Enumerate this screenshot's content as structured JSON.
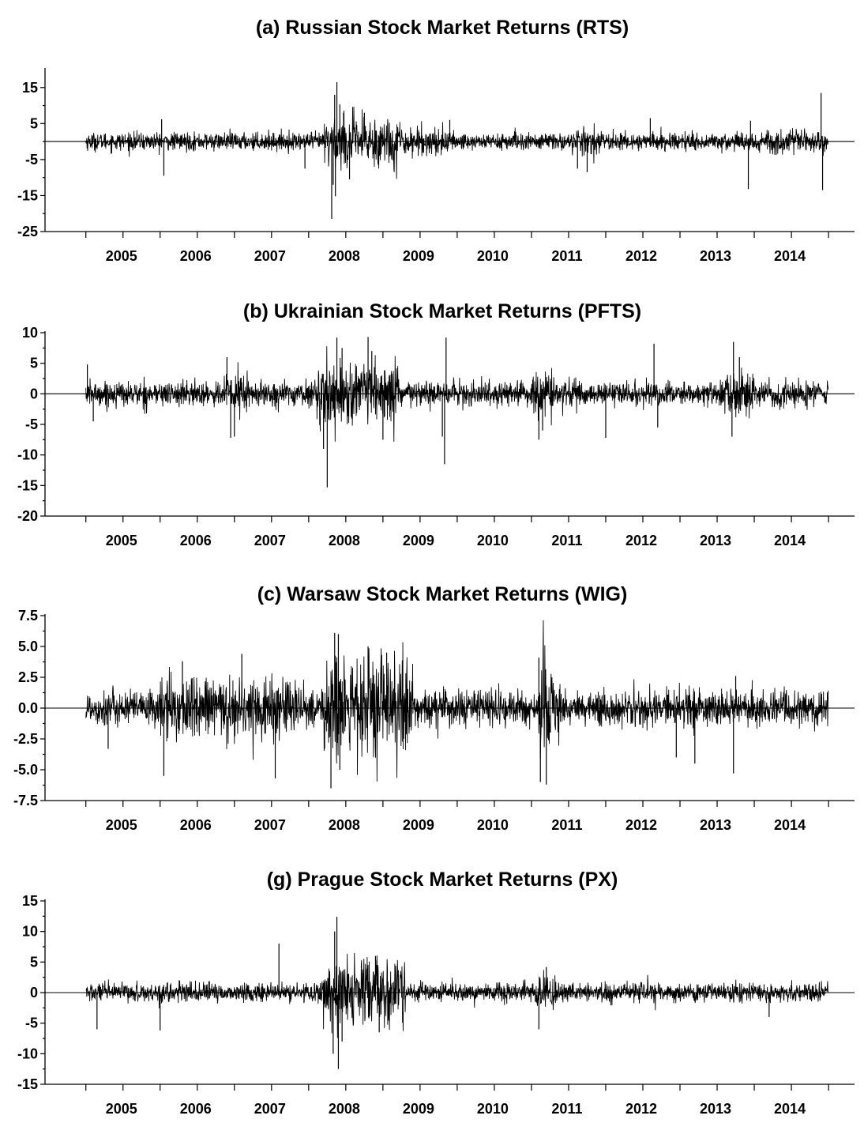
{
  "chart_data": [
    {
      "type": "line",
      "title": "(a) Russian Stock Market Returns (RTS)",
      "series": [
        {
          "name": "RTS",
          "x_range": [
            "2005-01-01",
            "2014-12-31"
          ]
        }
      ],
      "ylim": [
        -25,
        20
      ],
      "yticks": [
        15,
        5,
        -5,
        -15,
        -25
      ],
      "ytick_labels": [
        "15",
        "5",
        "-5",
        "-15",
        "-25"
      ],
      "categories": [
        "2005",
        "2006",
        "2007",
        "2008",
        "2009",
        "2010",
        "2011",
        "2012",
        "2013",
        "2014"
      ],
      "baseline": 0,
      "typical_amplitude": 2.2,
      "spikes": [
        {
          "x": 2006.02,
          "y": 6.2
        },
        {
          "x": 2006.05,
          "y": -9.5
        },
        {
          "x": 2008.38,
          "y": 16.5
        },
        {
          "x": 2008.35,
          "y": 13.0
        },
        {
          "x": 2008.42,
          "y": 10.3
        },
        {
          "x": 2008.47,
          "y": 8.0
        },
        {
          "x": 2008.31,
          "y": -21.5
        },
        {
          "x": 2008.36,
          "y": -15.2
        },
        {
          "x": 2008.33,
          "y": -12.0
        },
        {
          "x": 2008.55,
          "y": -10.5
        },
        {
          "x": 2008.75,
          "y": 8.0
        },
        {
          "x": 2009.9,
          "y": 6.0
        },
        {
          "x": 2011.75,
          "y": -8.5
        },
        {
          "x": 2011.62,
          "y": -7.5
        },
        {
          "x": 2012.6,
          "y": 6.5
        },
        {
          "x": 2013.92,
          "y": -13.2
        },
        {
          "x": 2013.95,
          "y": 5.8
        },
        {
          "x": 2014.9,
          "y": 13.5
        },
        {
          "x": 2014.92,
          "y": -13.5
        },
        {
          "x": 2007.95,
          "y": -7.5
        }
      ],
      "volatile_periods": [
        {
          "from": 2008.2,
          "to": 2009.25,
          "amplitude": 6.5
        },
        {
          "from": 2009.25,
          "to": 2009.9,
          "amplitude": 3.5
        },
        {
          "from": 2011.6,
          "to": 2011.85,
          "amplitude": 3.5
        },
        {
          "from": 2013.85,
          "to": 2014.95,
          "amplitude": 3.0
        }
      ]
    },
    {
      "type": "line",
      "title": "(b) Ukrainian Stock Market Returns (PFTS)",
      "series": [
        {
          "name": "PFTS",
          "x_range": [
            "2005-01-01",
            "2014-12-31"
          ]
        }
      ],
      "ylim": [
        -20,
        10
      ],
      "yticks": [
        10,
        5,
        0,
        -5,
        -10,
        -15,
        -20
      ],
      "ytick_labels": [
        "10",
        "5",
        "0",
        "-5",
        "-10",
        "-15",
        "-20"
      ],
      "categories": [
        "2005",
        "2006",
        "2007",
        "2008",
        "2009",
        "2010",
        "2011",
        "2012",
        "2013",
        "2014"
      ],
      "baseline": 0,
      "typical_amplitude": 1.8,
      "spikes": [
        {
          "x": 2005.02,
          "y": 4.8
        },
        {
          "x": 2005.1,
          "y": -4.5
        },
        {
          "x": 2006.9,
          "y": 6.0
        },
        {
          "x": 2006.95,
          "y": -7.2
        },
        {
          "x": 2007.0,
          "y": -7.0
        },
        {
          "x": 2008.25,
          "y": -15.3
        },
        {
          "x": 2008.38,
          "y": 9.2
        },
        {
          "x": 2008.45,
          "y": 7.5
        },
        {
          "x": 2008.2,
          "y": -9.0
        },
        {
          "x": 2008.8,
          "y": 9.3
        },
        {
          "x": 2008.85,
          "y": 7.0
        },
        {
          "x": 2009.0,
          "y": -7.5
        },
        {
          "x": 2009.85,
          "y": 9.2
        },
        {
          "x": 2009.83,
          "y": -11.5
        },
        {
          "x": 2009.8,
          "y": -7.0
        },
        {
          "x": 2011.1,
          "y": -7.5
        },
        {
          "x": 2011.15,
          "y": -6.0
        },
        {
          "x": 2012.0,
          "y": -7.2
        },
        {
          "x": 2012.65,
          "y": 8.2
        },
        {
          "x": 2012.7,
          "y": -5.5
        },
        {
          "x": 2013.72,
          "y": 8.5
        },
        {
          "x": 2013.7,
          "y": -7.0
        },
        {
          "x": 2013.8,
          "y": 6.0
        }
      ],
      "volatile_periods": [
        {
          "from": 2006.85,
          "to": 2007.2,
          "amplitude": 3.5
        },
        {
          "from": 2008.1,
          "to": 2009.2,
          "amplitude": 4.5
        },
        {
          "from": 2011.0,
          "to": 2011.3,
          "amplitude": 3.5
        },
        {
          "from": 2013.6,
          "to": 2014.0,
          "amplitude": 4.0
        }
      ]
    },
    {
      "type": "line",
      "title": "(c) Warsaw Stock Market Returns (WIG)",
      "series": [
        {
          "name": "WIG",
          "x_range": [
            "2005-01-01",
            "2014-12-31"
          ]
        }
      ],
      "ylim": [
        -7.5,
        7.5
      ],
      "yticks": [
        7.5,
        5.0,
        2.5,
        0.0,
        -2.5,
        -5.0,
        -7.5
      ],
      "ytick_labels": [
        "7.5",
        "5.0",
        "2.5",
        "0.0",
        "-2.5",
        "-5.0",
        "-7.5"
      ],
      "categories": [
        "2005",
        "2006",
        "2007",
        "2008",
        "2009",
        "2010",
        "2011",
        "2012",
        "2013",
        "2014"
      ],
      "baseline": 0,
      "typical_amplitude": 1.3,
      "spikes": [
        {
          "x": 2005.3,
          "y": -3.3
        },
        {
          "x": 2006.05,
          "y": -5.5
        },
        {
          "x": 2006.3,
          "y": 3.8
        },
        {
          "x": 2007.1,
          "y": 4.4
        },
        {
          "x": 2007.55,
          "y": -5.7
        },
        {
          "x": 2008.35,
          "y": 6.1
        },
        {
          "x": 2008.4,
          "y": 6.0
        },
        {
          "x": 2008.3,
          "y": -6.5
        },
        {
          "x": 2008.42,
          "y": -5.0
        },
        {
          "x": 2008.8,
          "y": 5.0
        },
        {
          "x": 2009.05,
          "y": 4.5
        },
        {
          "x": 2011.1,
          "y": 4.1
        },
        {
          "x": 2011.12,
          "y": -6.0
        },
        {
          "x": 2011.2,
          "y": -6.2
        },
        {
          "x": 2012.95,
          "y": -4.0
        },
        {
          "x": 2013.2,
          "y": -4.5
        },
        {
          "x": 2013.72,
          "y": -5.3
        },
        {
          "x": 2013.75,
          "y": 2.6
        }
      ],
      "volatile_periods": [
        {
          "from": 2006.0,
          "to": 2007.9,
          "amplitude": 2.3
        },
        {
          "from": 2008.2,
          "to": 2009.4,
          "amplitude": 3.8
        },
        {
          "from": 2011.1,
          "to": 2011.4,
          "amplitude": 3.5
        }
      ]
    },
    {
      "type": "line",
      "title": "(g) Prague Stock Market Returns (PX)",
      "series": [
        {
          "name": "PX",
          "x_range": [
            "2005-01-01",
            "2014-12-31"
          ]
        }
      ],
      "ylim": [
        -15,
        15
      ],
      "yticks": [
        15,
        10,
        5,
        0,
        -5,
        -10,
        -15
      ],
      "ytick_labels": [
        "15",
        "10",
        "5",
        "0",
        "-5",
        "-10",
        "-15"
      ],
      "categories": [
        "2005",
        "2006",
        "2007",
        "2008",
        "2009",
        "2010",
        "2011",
        "2012",
        "2013",
        "2014"
      ],
      "baseline": 0,
      "typical_amplitude": 1.4,
      "spikes": [
        {
          "x": 2005.15,
          "y": -6.0
        },
        {
          "x": 2006.0,
          "y": -6.2
        },
        {
          "x": 2007.6,
          "y": 8.0
        },
        {
          "x": 2008.38,
          "y": 12.4
        },
        {
          "x": 2008.35,
          "y": 10.0
        },
        {
          "x": 2008.4,
          "y": -12.5
        },
        {
          "x": 2008.33,
          "y": -10.0
        },
        {
          "x": 2008.45,
          "y": -8.0
        },
        {
          "x": 2008.9,
          "y": 6.0
        },
        {
          "x": 2008.95,
          "y": -6.5
        },
        {
          "x": 2011.1,
          "y": -6.0
        },
        {
          "x": 2011.2,
          "y": 4.2
        },
        {
          "x": 2014.2,
          "y": -4.0
        }
      ],
      "volatile_periods": [
        {
          "from": 2008.2,
          "to": 2009.3,
          "amplitude": 5.0
        },
        {
          "from": 2011.05,
          "to": 2011.35,
          "amplitude": 3.0
        }
      ]
    }
  ]
}
